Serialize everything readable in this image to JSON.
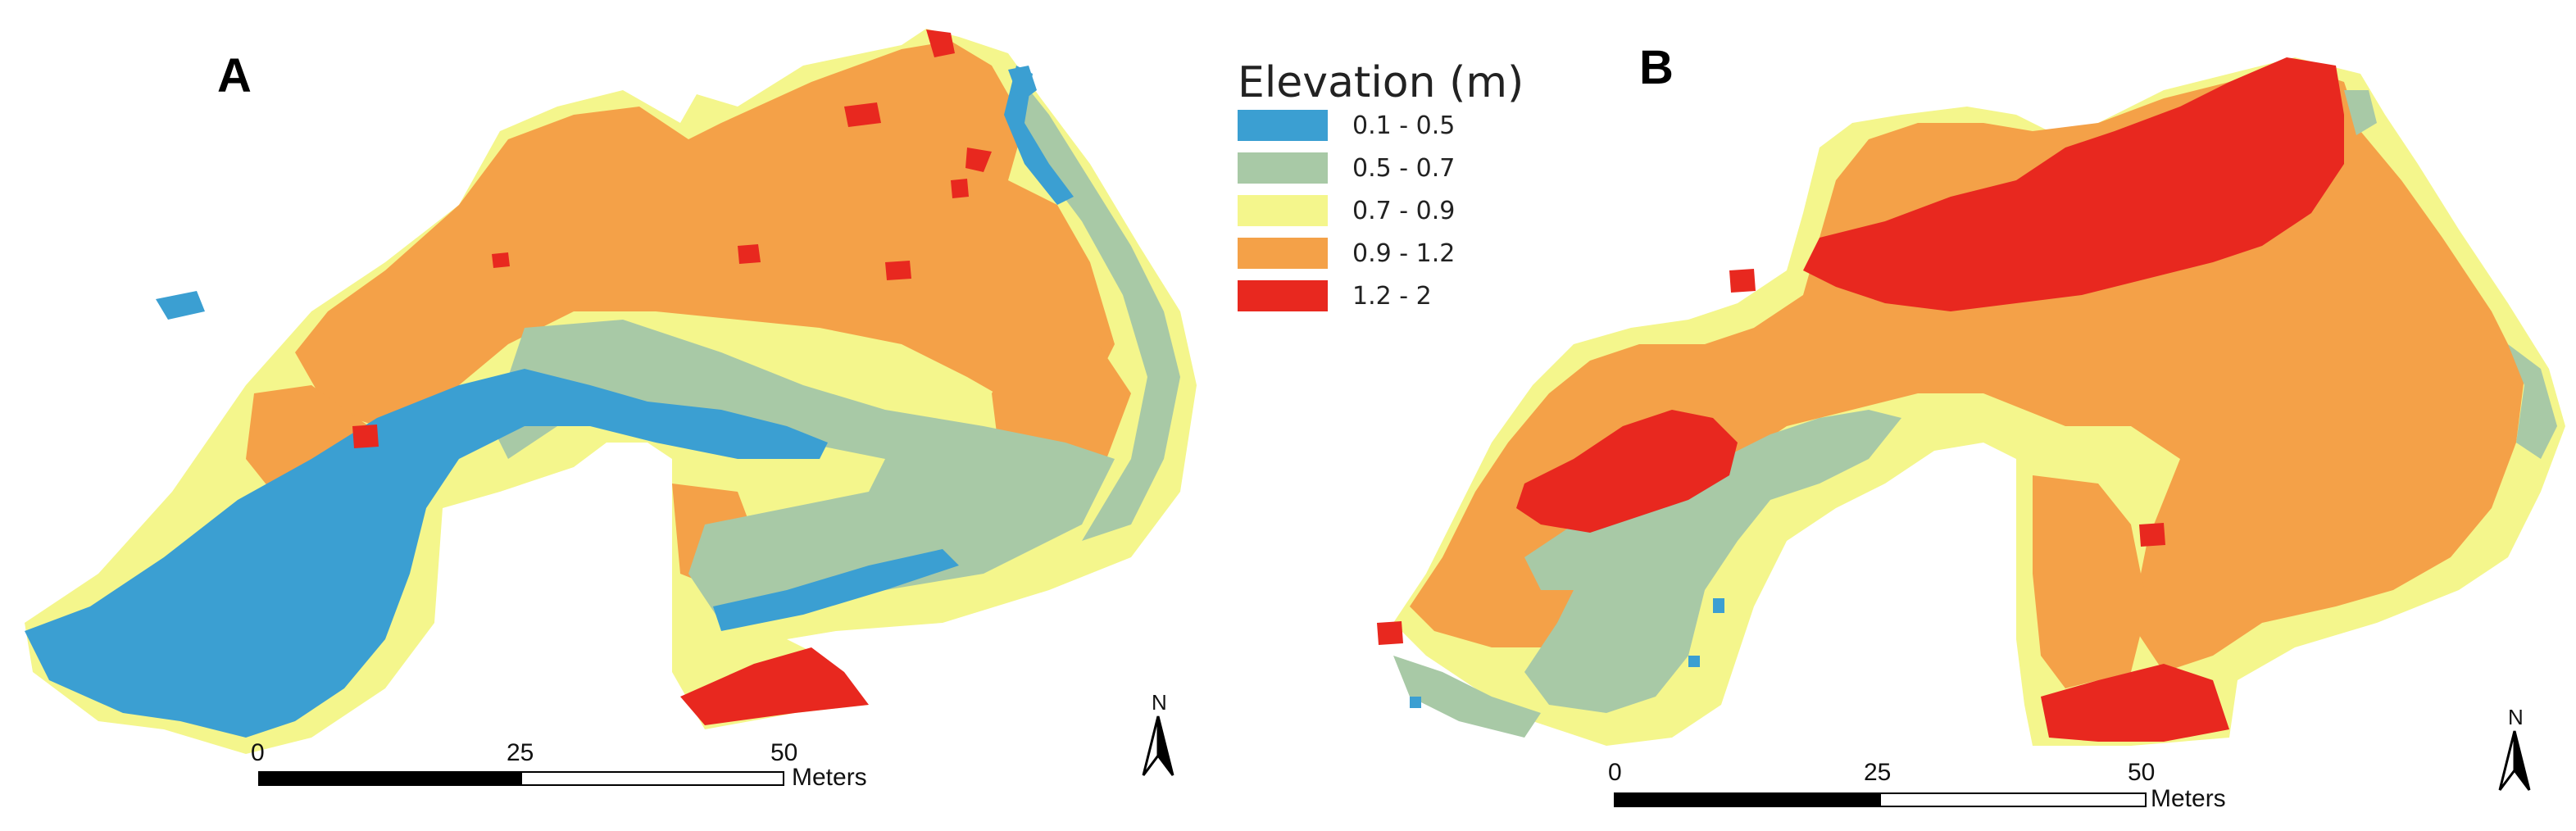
{
  "figure": {
    "panel_a_label": "A",
    "panel_b_label": "B"
  },
  "legend": {
    "title": "Elevation (m)",
    "classes": [
      {
        "label": "0.1 - 0.5",
        "color": "#3b9fd2"
      },
      {
        "label": "0.5 - 0.7",
        "color": "#a8c9a6"
      },
      {
        "label": "0.7 - 0.9",
        "color": "#f4f68c"
      },
      {
        "label": "0.9 - 1.2",
        "color": "#f4a148"
      },
      {
        "label": "1.2 - 2",
        "color": "#e8281f"
      }
    ]
  },
  "scalebar": {
    "tick_0": "0",
    "tick_25": "25",
    "tick_50": "50",
    "unit": "Meters"
  },
  "north_arrow": {
    "label": "N"
  },
  "colors": {
    "blue": "#3b9fd2",
    "green": "#a8c9a6",
    "yellow": "#f4f68c",
    "orange": "#f4a148",
    "red": "#e8281f"
  }
}
